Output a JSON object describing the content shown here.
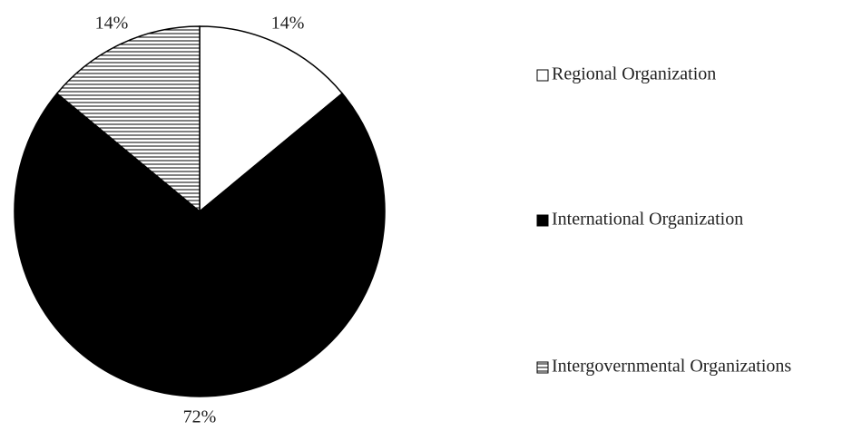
{
  "chart_data": {
    "type": "pie",
    "categories": [
      "Regional Organization",
      "International Organization",
      "Intergovernmental Organizations"
    ],
    "values": [
      14,
      72,
      14
    ],
    "value_labels": [
      "14%",
      "72%",
      "14%"
    ],
    "colors": [
      "#ffffff",
      "#000000",
      "#ffffff"
    ],
    "hatch": [
      false,
      false,
      true
    ],
    "legend": "right"
  }
}
